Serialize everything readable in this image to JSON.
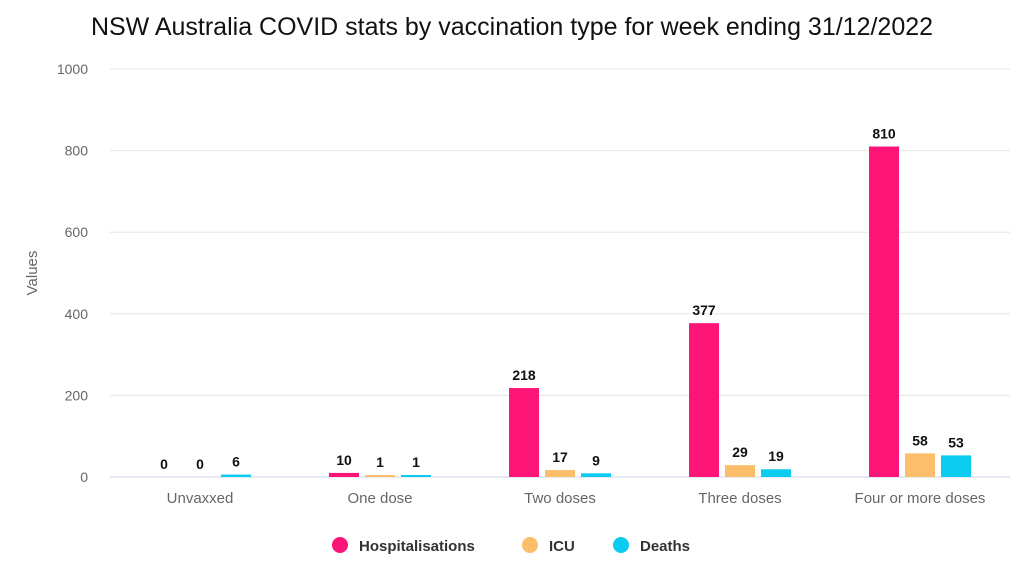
{
  "chart_data": {
    "type": "bar",
    "title": "NSW Australia COVID stats by vaccination type for week ending 31/12/2022",
    "xlabel": "",
    "ylabel": "Values",
    "ylim": [
      0,
      1000
    ],
    "yticks": [
      0,
      200,
      400,
      600,
      800,
      1000
    ],
    "grid": true,
    "legend_position": "bottom",
    "categories": [
      "Unvaxxed",
      "One dose",
      "Two doses",
      "Three doses",
      "Four or more doses"
    ],
    "series": [
      {
        "name": "Hospitalisations",
        "color": "#fc1477",
        "values": [
          0,
          10,
          218,
          377,
          810
        ]
      },
      {
        "name": "ICU",
        "color": "#fdbe6b",
        "values": [
          0,
          1,
          17,
          29,
          58
        ]
      },
      {
        "name": "Deaths",
        "color": "#0bcbf0",
        "values": [
          6,
          1,
          9,
          19,
          53
        ]
      }
    ]
  }
}
